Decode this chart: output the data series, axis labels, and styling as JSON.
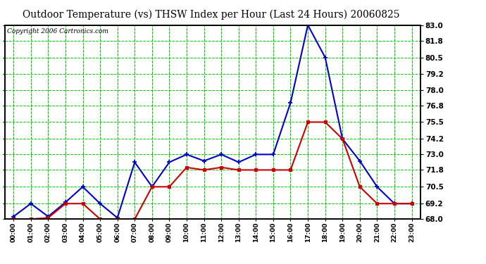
{
  "title": "Outdoor Temperature (vs) THSW Index per Hour (Last 24 Hours) 20060825",
  "copyright": "Copyright 2006 Cartronics.com",
  "x_labels": [
    "00:00",
    "01:00",
    "02:00",
    "03:00",
    "04:00",
    "05:00",
    "06:00",
    "07:00",
    "08:00",
    "09:00",
    "10:00",
    "11:00",
    "12:00",
    "13:00",
    "14:00",
    "15:00",
    "16:00",
    "17:00",
    "18:00",
    "19:00",
    "20:00",
    "21:00",
    "22:00",
    "23:00"
  ],
  "y_ticks": [
    68.0,
    69.2,
    70.5,
    71.8,
    73.0,
    74.2,
    75.5,
    76.8,
    78.0,
    79.2,
    80.5,
    81.8,
    83.0
  ],
  "ylim": [
    68.0,
    83.0
  ],
  "blue_line": [
    68.2,
    69.2,
    68.2,
    69.3,
    70.5,
    69.2,
    68.1,
    72.4,
    70.5,
    72.4,
    73.0,
    72.5,
    73.0,
    72.4,
    73.0,
    73.0,
    77.0,
    83.0,
    80.5,
    74.2,
    72.5,
    70.5,
    69.2,
    69.2
  ],
  "red_line": [
    68.0,
    68.0,
    68.1,
    69.2,
    69.2,
    68.0,
    68.0,
    68.0,
    70.5,
    70.5,
    72.0,
    71.8,
    72.0,
    71.8,
    71.8,
    71.8,
    71.8,
    75.5,
    75.5,
    74.2,
    70.5,
    69.2,
    69.2,
    69.2
  ],
  "blue_color": "#0000cc",
  "red_color": "#cc0000",
  "bg_color": "#ffffff",
  "grid_color": "#00cc00",
  "title_color": "#000000",
  "border_color": "#000000",
  "fig_bg": "#ffffff",
  "title_fontsize": 10,
  "copyright_fontsize": 6.5,
  "tick_fontsize": 7.5,
  "x_tick_fontsize": 6.5,
  "marker_size": 4,
  "line_width": 1.5
}
